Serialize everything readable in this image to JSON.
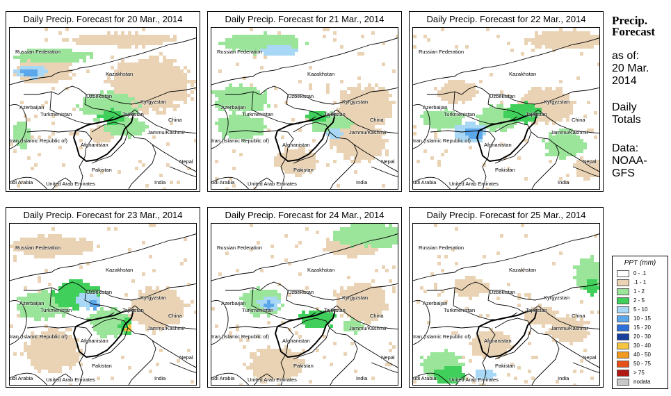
{
  "panels": [
    {
      "title": "Daily Precip. Forecast for  20 Mar., 2014"
    },
    {
      "title": "Daily Precip. Forecast for  21 Mar., 2014"
    },
    {
      "title": "Daily Precip. Forecast for  22 Mar., 2014"
    },
    {
      "title": "Daily Precip. Forecast for  23 Mar., 2014"
    },
    {
      "title": "Daily Precip. Forecast for  24 Mar., 2014"
    },
    {
      "title": "Daily Precip. Forecast for  25 Mar., 2014"
    }
  ],
  "places": {
    "russia": "Russian Federation",
    "kazakhstan": "Kazakhstan",
    "uzbekistan": "Uzbekistan",
    "kyrgyzstan": "Kyrgyzstan",
    "azerbaijan": "Azerbaijan",
    "turkmenistan": "Turkmenistan",
    "tajikistan": "Tajikistan",
    "china": "China",
    "jammu": "Jammu/Kashmir",
    "iran": "Iran  (Islamic Republic of)",
    "afghanistan": "Afghanistan",
    "nepal": "Nepal",
    "pakistan": "Pakistan",
    "saudi": "udi Arabia",
    "uae": "United Arab Emirates",
    "india": "India"
  },
  "sidebar": {
    "title_line1": "Precip.",
    "title_line2": "Forecast",
    "asof_line1": "as of:",
    "asof_line2": "20 Mar.",
    "asof_line3": "2014",
    "totals_line1": "Daily",
    "totals_line2": "Totals",
    "source_line1": "Data:",
    "source_line2": "NOAA-",
    "source_line3": "GFS"
  },
  "legend": {
    "title": "PPT (mm)",
    "items": [
      {
        "label": "0 - .1",
        "color": "#ffffff"
      },
      {
        "label": ".1 - 1",
        "color": "#e9d3b4"
      },
      {
        "label": "1 - 2",
        "color": "#9be59b"
      },
      {
        "label": "2 - 5",
        "color": "#3fcf5a"
      },
      {
        "label": "5 - 10",
        "color": "#a8d8f5"
      },
      {
        "label": "10 - 15",
        "color": "#5ca6ea"
      },
      {
        "label": "15 - 20",
        "color": "#2f6fd8"
      },
      {
        "label": "20 - 30",
        "color": "#1a3f9c"
      },
      {
        "label": "30 - 40",
        "color": "#f5c542"
      },
      {
        "label": "40 - 50",
        "color": "#f29a1e"
      },
      {
        "label": "50 - 75",
        "color": "#e8501a"
      },
      {
        "label": "> 75",
        "color": "#b01a12"
      },
      {
        "label": "nodata",
        "color": "#c8c8c8"
      }
    ]
  }
}
